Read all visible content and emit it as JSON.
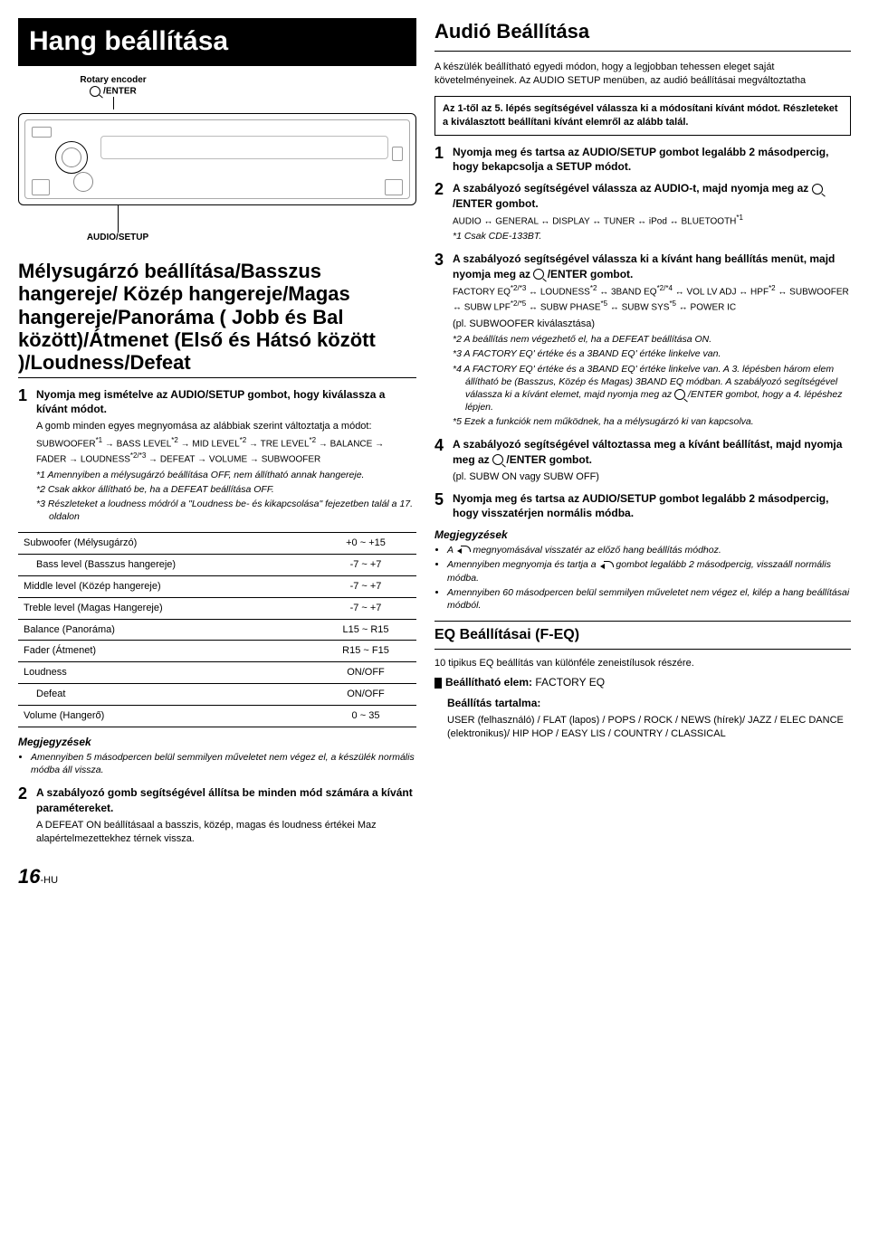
{
  "left": {
    "title": "Hang beállítása",
    "encoder_label": "Rotary encoder",
    "encoder_sub": "/ENTER",
    "audio_setup": "AUDIO/SETUP",
    "section": "Mélysugárzó beállítása/Basszus hangereje/ Közép hangereje/Magas hangereje/Panoráma ( Jobb és Bal között)/Átmenet (Első és Hátsó között )/Loudness/Defeat",
    "step1_title": "Nyomja meg ismételve az AUDIO/SETUP gombot, hogy kiválassza a kívánt módot.",
    "step1_plain": "A gomb minden egyes megnyomása az alábbiak szerint változtatja a módot:",
    "chain": "SUBWOOFER*1 → BASS LEVEL*2 → MID LEVEL*2 → TRE LEVEL*2 → BALANCE → FADER → LOUDNESS*2/*3 → DEFEAT → VOLUME → SUBWOOFER",
    "fn1": "*1 Amennyiben a mélysugárzó beállítása OFF, nem állítható annak hangereje.",
    "fn2": "*2 Csak akkor állítható be, ha a DEFEAT beállítása OFF.",
    "fn3": "*3 Részleteket a loudness módról a \"Loudness be- és kikapcsolása\" fejezetben talál a 17. oldalon",
    "rows": [
      {
        "name": "Subwoofer (Mélysugárzó)",
        "val": "+0 ~ +15",
        "indent": 0
      },
      {
        "name": "Bass level (Basszus hangereje)",
        "val": "-7 ~ +7",
        "indent": 1
      },
      {
        "name": "Middle level (Közép hangereje)",
        "val": "-7 ~ +7",
        "indent": 0
      },
      {
        "name": "Treble level (Magas Hangereje)",
        "val": "-7 ~ +7",
        "indent": 0
      },
      {
        "name": "Balance (Panoráma)",
        "val": "L15 ~ R15",
        "indent": 0
      },
      {
        "name": "Fader (Átmenet)",
        "val": "R15 ~ F15",
        "indent": 0
      },
      {
        "name": "Loudness",
        "val": "ON/OFF",
        "indent": 0
      },
      {
        "name": "Defeat",
        "val": "ON/OFF",
        "indent": 1
      },
      {
        "name": "Volume (Hangerő)",
        "val": "0 ~ 35",
        "indent": 0
      }
    ],
    "notes_head": "Megjegyzések",
    "note1": "Amennyiben 5 másodpercen belül semmilyen műveletet nem végez el, a készülék normális módba áll vissza.",
    "step2_title": "A szabályozó gomb segítségével állítsa be minden mód számára a kívánt paramétereket.",
    "step2_plain": "A DEFEAT ON beállításaal a basszis, közép, magas és loudness értékei Maz alapértelmezettekhez térnek vissza.",
    "page_big": "16",
    "page_sm": "-HU"
  },
  "right": {
    "title": "Audió Beállítása",
    "intro": "A készülék beállítható egyedi módon, hogy a legjobban tehessen eleget saját követelményeinek. Az AUDIO SETUP menüben, az audió beállításai megváltoztatha",
    "box": "Az 1-től az 5. lépés segítségével válassza ki a módosítani kívánt módot. Részleteket a kiválasztott beállítani kívánt elemről az alább talál.",
    "step1": "Nyomja meg és tartsa az AUDIO/SETUP gombot legalább 2 másodpercig, hogy bekapcsolja a SETUP módot.",
    "step2_a": "A szabályozó segítségével válassza az AUDIO-t, majd nyomja meg az",
    "step2_b": "/ENTER gombot.",
    "step2_chain": "AUDIO ↔ GENERAL ↔ DISPLAY ↔ TUNER ↔ iPod ↔ BLUETOOTH*1",
    "step2_fn": "*1 Csak CDE-133BT.",
    "step3_a": "A szabályozó segítségével válassza ki a kívánt hang beállítás menüt, majd nyomja meg az ",
    "step3_b": "/ENTER gombot.",
    "step3_chain": "FACTORY EQ*2/*3 ↔ LOUDNESS*2 ↔ 3BAND EQ*2/*4 ↔ VOL LV ADJ ↔ HPF*2 ↔ SUBWOOFER ↔ SUBW LPF*2/*5 ↔ SUBW PHASE*5 ↔ SUBW SYS*5 ↔ POWER IC",
    "step3_eg": "(pl. SUBWOOFER kiválasztása)",
    "fn2": "*2 A beállítás nem végezhető el, ha a DEFEAT beállítása ON.",
    "fn3": "*3 A FACTORY EQ' értéke és a 3BAND EQ' értéke linkelve van.",
    "fn4a": "*4 A FACTORY EQ' értéke és a 3BAND EQ' értéke linkelve van. A 3. lépésben három elem állítható be (Basszus, Közép és Magas) 3BAND EQ módban. A szabályozó segítségével válassza ki a kívánt elemet, majd  nyomja meg az",
    "fn4b": "/ENTER  gombot, hogy a 4. lépéshez lépjen.",
    "fn5": "*5 Ezek a funkciók nem működnek, ha a mélysugárzó ki van kapcsolva.",
    "step4_a": "A szabályozó segítségével változtassa meg a kívánt beállítást, majd nyomja meg az ",
    "step4_b": "/ENTER gombot.",
    "step4_eg": "(pl. SUBW ON vagy SUBW OFF)",
    "step5": "Nyomja meg és tartsa az AUDIO/SETUP gombot legalább 2 másodpercig, hogy visszatérjen normális módba.",
    "notes_head": "Megjegyzések",
    "rn1a": "A ",
    "rn1b": " megnyomásával visszatér az előző hang beállítás módhoz.",
    "rn2a": "Amennyiben megnyomja és tartja a ",
    "rn2b": " gombot legalább 2 másodpercig, visszaáll normális módba.",
    "rn3": "Amennyiben 60 másodpercen belül semmilyen műveletet nem végez el, kilép a hang beállításai módból.",
    "eq_bar": "EQ Beállításai (F-EQ)",
    "eq_intro": "10 tipikus EQ beállítás van különféle zeneistílusok részére.",
    "eq_item_label": "Beállítható elem:",
    "eq_item_value": "FACTORY EQ",
    "eq_content_label": "Beállítás tartalma:",
    "eq_content": "USER (felhasználó) / FLAT (lapos) / POPS / ROCK / NEWS (hírek)/ JAZZ / ELEC DANCE (elektronikus)/ HIP HOP / EASY LIS /  COUNTRY / CLASSICAL"
  }
}
